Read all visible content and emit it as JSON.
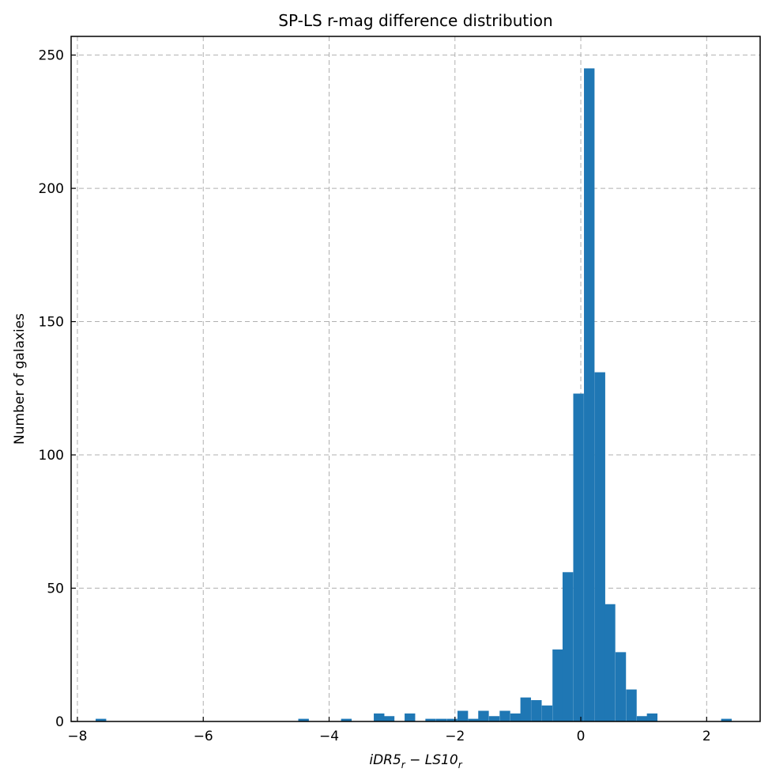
{
  "chart_data": {
    "type": "bar",
    "title": "SP-LS r-mag difference distribution",
    "xlabel_parts": [
      "iDR5",
      "r",
      " − ",
      "LS10",
      "r"
    ],
    "ylabel": "Number of galaxies",
    "xlim": [
      -8.1,
      2.85
    ],
    "ylim": [
      0,
      257
    ],
    "xticks": [
      -8,
      -6,
      -4,
      -2,
      0,
      2
    ],
    "xtick_labels": [
      "−8",
      "−6",
      "−4",
      "−2",
      "0",
      "2"
    ],
    "yticks": [
      0,
      50,
      100,
      150,
      200,
      250
    ],
    "ytick_labels": [
      "0",
      "50",
      "100",
      "150",
      "200",
      "250"
    ],
    "grid": true,
    "bar_color": "#1f77b4",
    "bin_width": 0.168,
    "bins": [
      {
        "x0": -7.71,
        "count": 1
      },
      {
        "x0": -4.49,
        "count": 1
      },
      {
        "x0": -3.81,
        "count": 1
      },
      {
        "x0": -3.29,
        "count": 3
      },
      {
        "x0": -3.13,
        "count": 2
      },
      {
        "x0": -2.8,
        "count": 3
      },
      {
        "x0": -2.47,
        "count": 1
      },
      {
        "x0": -2.3,
        "count": 1
      },
      {
        "x0": -2.13,
        "count": 1
      },
      {
        "x0": -1.96,
        "count": 4
      },
      {
        "x0": -1.79,
        "count": 1
      },
      {
        "x0": -1.63,
        "count": 4
      },
      {
        "x0": -1.46,
        "count": 2
      },
      {
        "x0": -1.29,
        "count": 4
      },
      {
        "x0": -1.12,
        "count": 3
      },
      {
        "x0": -0.96,
        "count": 9
      },
      {
        "x0": -0.79,
        "count": 8
      },
      {
        "x0": -0.62,
        "count": 6
      },
      {
        "x0": -0.45,
        "count": 27
      },
      {
        "x0": -0.29,
        "count": 56
      },
      {
        "x0": -0.12,
        "count": 123
      },
      {
        "x0": 0.05,
        "count": 245
      },
      {
        "x0": 0.22,
        "count": 131
      },
      {
        "x0": 0.38,
        "count": 44
      },
      {
        "x0": 0.55,
        "count": 26
      },
      {
        "x0": 0.72,
        "count": 12
      },
      {
        "x0": 0.89,
        "count": 2
      },
      {
        "x0": 1.05,
        "count": 3
      },
      {
        "x0": 2.23,
        "count": 1
      }
    ]
  }
}
